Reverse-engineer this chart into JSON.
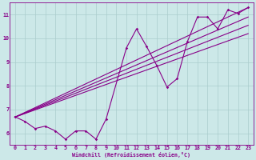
{
  "xlabel": "Windchill (Refroidissement éolien,°C)",
  "bg_color": "#cce8e8",
  "line_color": "#880088",
  "xlim": [
    -0.5,
    23.5
  ],
  "ylim": [
    5.5,
    11.5
  ],
  "xticks": [
    0,
    1,
    2,
    3,
    4,
    5,
    6,
    7,
    8,
    9,
    10,
    11,
    12,
    13,
    14,
    15,
    16,
    17,
    18,
    19,
    20,
    21,
    22,
    23
  ],
  "yticks": [
    6,
    7,
    8,
    9,
    10,
    11
  ],
  "grid_color": "#aacccc",
  "data_line": {
    "x": [
      0,
      1,
      2,
      3,
      4,
      5,
      6,
      7,
      8,
      9,
      11,
      12,
      13,
      14,
      15,
      16,
      17,
      18,
      19,
      20,
      21,
      22,
      23
    ],
    "y": [
      6.7,
      6.5,
      6.2,
      6.3,
      6.1,
      5.75,
      6.1,
      6.1,
      5.75,
      6.6,
      9.6,
      10.4,
      9.65,
      8.85,
      7.95,
      8.3,
      9.85,
      10.9,
      10.9,
      10.4,
      11.2,
      11.05,
      11.3
    ]
  },
  "reg_lines": [
    {
      "x0": 0,
      "y0": 6.68,
      "x1": 23,
      "y1": 11.3
    },
    {
      "x0": 0,
      "y0": 6.68,
      "x1": 23,
      "y1": 10.9
    },
    {
      "x0": 0,
      "y0": 6.68,
      "x1": 23,
      "y1": 10.55
    },
    {
      "x0": 0,
      "y0": 6.68,
      "x1": 23,
      "y1": 10.2
    }
  ]
}
